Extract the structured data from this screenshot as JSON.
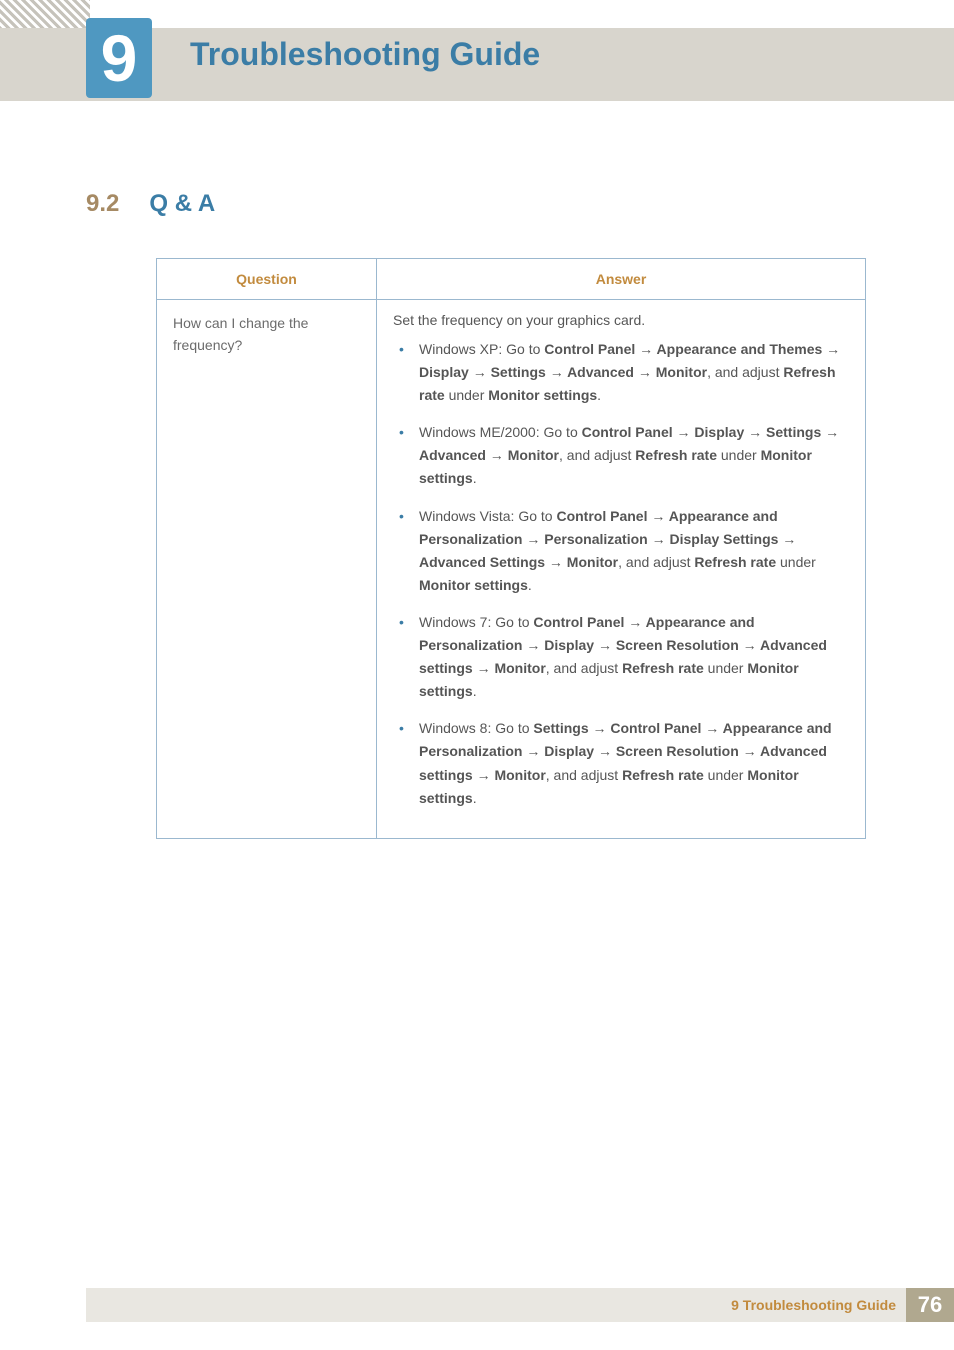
{
  "header": {
    "chapter_number": "9",
    "chapter_title": "Troubleshooting Guide",
    "badge_color": "#4f98c1",
    "band_color": "#d8d5cd"
  },
  "section": {
    "number": "9.2",
    "title": "Q & A",
    "number_color": "#a68a64",
    "title_color": "#3b7da6"
  },
  "table": {
    "border_color": "#9bb8cf",
    "header_color": "#c28b3e",
    "columns": {
      "question": "Question",
      "answer": "Answer"
    },
    "question": "How can I change the frequency?",
    "answer_lead": "Set the frequency on your graphics card.",
    "bullets": [
      {
        "os": "Windows XP: Go to ",
        "path": "Control Panel → Appearance and Themes → Display → Settings → Advanced → Monitor",
        "mid": ", and adjust ",
        "key": "Refresh rate",
        "mid2": " under ",
        "key2": "Monitor settings",
        "tail": "."
      },
      {
        "os": "Windows ME/2000: Go to ",
        "path": "Control Panel → Display → Settings → Advanced → Monitor",
        "mid": ", and adjust ",
        "key": "Refresh rate",
        "mid2": " under ",
        "key2": "Monitor settings",
        "tail": "."
      },
      {
        "os": "Windows Vista: Go to ",
        "path": "Control Panel → Appearance and Personalization → Personalization → Display Settings → Advanced Settings → Monitor",
        "mid": ", and adjust ",
        "key": "Refresh rate",
        "mid2": " under ",
        "key2": "Monitor settings",
        "tail": "."
      },
      {
        "os": "Windows 7: Go to ",
        "path": "Control Panel → Appearance and Personalization → Display → Screen Resolution → Advanced settings → Monitor",
        "mid": ", and adjust ",
        "key": "Refresh rate",
        "mid2": " under ",
        "key2": "Monitor settings",
        "tail": "."
      },
      {
        "os": "Windows 8: Go to ",
        "path": "Settings → Control Panel → Appearance and Personalization → Display → Screen Resolution → Advanced settings → Monitor",
        "mid": ", and adjust ",
        "key": "Refresh rate",
        "mid2": " under ",
        "key2": "Monitor settings",
        "tail": "."
      }
    ]
  },
  "footer": {
    "label": "9 Troubleshooting Guide",
    "page": "76",
    "band_color": "#e9e7e1",
    "label_color": "#c28b3e",
    "badge_bg": "#b0a88f"
  }
}
